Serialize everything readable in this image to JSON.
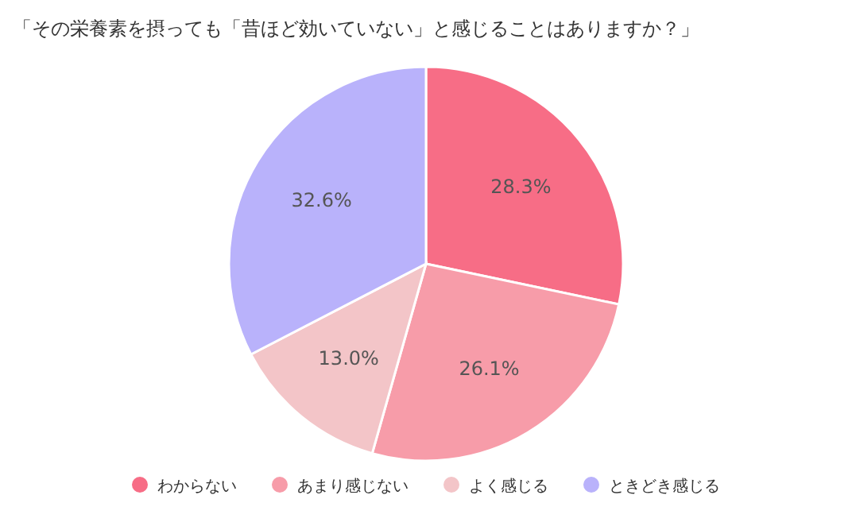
{
  "chart_data": {
    "type": "pie",
    "title": "「その栄養素を摂っても「昔ほど効いていない」と感じることはありますか？」",
    "categories": [
      "わからない",
      "あまり感じない",
      "よく感じる",
      "ときどき感じる"
    ],
    "values": [
      28.3,
      26.1,
      13.0,
      32.6
    ],
    "value_labels": [
      "28.3%",
      "26.1%",
      "13.0%",
      "32.6%"
    ],
    "colors": [
      "#f76d86",
      "#f79ca9",
      "#f3c5c8",
      "#b9b2fb"
    ],
    "legend": "bottom"
  }
}
